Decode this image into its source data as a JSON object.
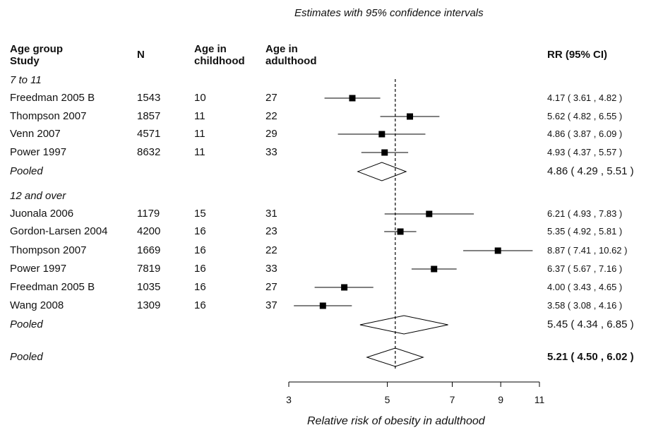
{
  "chart_data": {
    "type": "forest",
    "title": "Estimates with 95% confidence intervals",
    "xlabel": "Relative risk of obesity in adulthood",
    "x_scale": "log",
    "x_ticks": [
      3,
      5,
      7,
      9,
      11
    ],
    "x_tick_labels": [
      "3",
      "5",
      "7",
      "9",
      "11"
    ],
    "reference_line": 5.21,
    "columns": {
      "study": "Age group\nStudy",
      "study_line1": "Age group",
      "study_line2": "Study",
      "n": "N",
      "age_child_line1": "Age in",
      "age_child_line2": "childhood",
      "age_adult_line1": "Age in",
      "age_adult_line2": "adulthood",
      "rr": "RR (95% CI)"
    },
    "groups": [
      {
        "label": "7 to 11",
        "studies": [
          {
            "study": "Freedman 2005 B",
            "n": "1543",
            "age_child": "10",
            "age_adult": "27",
            "rr": 4.17,
            "lo": 3.61,
            "hi": 4.82,
            "rr_text": "4.17",
            "ci_text": "( 3.61 , 4.82 )"
          },
          {
            "study": "Thompson 2007",
            "n": "1857",
            "age_child": "11",
            "age_adult": "22",
            "rr": 5.62,
            "lo": 4.82,
            "hi": 6.55,
            "rr_text": "5.62",
            "ci_text": "( 4.82 , 6.55 )"
          },
          {
            "study": "Venn 2007",
            "n": "4571",
            "age_child": "11",
            "age_adult": "29",
            "rr": 4.86,
            "lo": 3.87,
            "hi": 6.09,
            "rr_text": "4.86",
            "ci_text": "( 3.87 , 6.09 )"
          },
          {
            "study": "Power 1997",
            "n": "8632",
            "age_child": "11",
            "age_adult": "33",
            "rr": 4.93,
            "lo": 4.37,
            "hi": 5.57,
            "rr_text": "4.93",
            "ci_text": "( 4.37 , 5.57 )"
          }
        ],
        "pooled": {
          "label": "Pooled",
          "rr": 4.86,
          "lo": 4.29,
          "hi": 5.51,
          "rr_text": "4.86",
          "ci_text": "( 4.29 , 5.51 )"
        }
      },
      {
        "label": "12 and over",
        "studies": [
          {
            "study": "Juonala 2006",
            "n": "1179",
            "age_child": "15",
            "age_adult": "31",
            "rr": 6.21,
            "lo": 4.93,
            "hi": 7.83,
            "rr_text": "6.21",
            "ci_text": "( 4.93 , 7.83 )"
          },
          {
            "study": "Gordon-Larsen 2004",
            "n": "4200",
            "age_child": "16",
            "age_adult": "23",
            "rr": 5.35,
            "lo": 4.92,
            "hi": 5.81,
            "rr_text": "5.35",
            "ci_text": "( 4.92 , 5.81 )"
          },
          {
            "study": "Thompson 2007",
            "n": "1669",
            "age_child": "16",
            "age_adult": "22",
            "rr": 8.87,
            "lo": 7.41,
            "hi": 10.62,
            "rr_text": "8.87",
            "ci_text": "( 7.41 , 10.62 )"
          },
          {
            "study": "Power 1997",
            "n": "7819",
            "age_child": "16",
            "age_adult": "33",
            "rr": 6.37,
            "lo": 5.67,
            "hi": 7.16,
            "rr_text": "6.37",
            "ci_text": "( 5.67 , 7.16 )"
          },
          {
            "study": "Freedman 2005 B",
            "n": "1035",
            "age_child": "16",
            "age_adult": "27",
            "rr": 4.0,
            "lo": 3.43,
            "hi": 4.65,
            "rr_text": "4.00",
            "ci_text": "( 3.43 , 4.65 )"
          },
          {
            "study": "Wang 2008",
            "n": "1309",
            "age_child": "16",
            "age_adult": "37",
            "rr": 3.58,
            "lo": 3.08,
            "hi": 4.16,
            "rr_text": "3.58",
            "ci_text": "( 3.08 , 4.16 )"
          }
        ],
        "pooled": {
          "label": "Pooled",
          "rr": 5.45,
          "lo": 4.34,
          "hi": 6.85,
          "rr_text": "5.45",
          "ci_text": "( 4.34 , 6.85 )"
        }
      }
    ],
    "overall": {
      "label": "Pooled",
      "rr": 5.21,
      "lo": 4.5,
      "hi": 6.02,
      "rr_text": "5.21",
      "ci_text": "( 4.50 , 6.02 )"
    },
    "colors": {
      "marker": "#000000",
      "line": "#000000",
      "diamond_fill": "#ffffff"
    }
  }
}
